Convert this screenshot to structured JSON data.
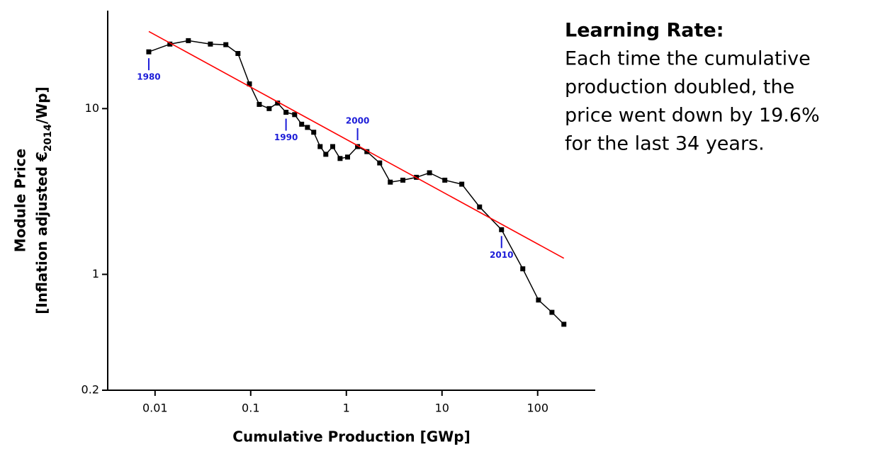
{
  "chart_data": {
    "type": "line",
    "xlabel": "Cumulative Production [GWp]",
    "ylabel": "Module Price",
    "ylabel_line2": [
      "[Inflation adjusted €",
      "2014",
      "/Wp]"
    ],
    "xscale": "log",
    "yscale": "log",
    "xlim": [
      0.0032,
      400
    ],
    "ylim": [
      0.2,
      39
    ],
    "xticks": [
      0.01,
      0.1,
      1,
      10,
      100
    ],
    "yticks": [
      0.2,
      1,
      10
    ],
    "series": [
      {
        "color": "#000000",
        "marker": "square",
        "x": [
          0.0086,
          0.0143,
          0.0223,
          0.0379,
          0.055,
          0.0736,
          0.097,
          0.123,
          0.156,
          0.191,
          0.234,
          0.288,
          0.341,
          0.392,
          0.456,
          0.532,
          0.61,
          0.72,
          0.86,
          1.03,
          1.31,
          1.64,
          2.23,
          2.88,
          3.9,
          5.4,
          7.4,
          10.7,
          16.1,
          24.7,
          41.9,
          69.9,
          102,
          141,
          188
        ],
        "values": [
          22.0,
          24.5,
          25.7,
          24.5,
          24.3,
          21.5,
          14.1,
          10.6,
          10.0,
          10.8,
          9.5,
          9.2,
          8.05,
          7.7,
          7.2,
          5.9,
          5.3,
          5.9,
          5.0,
          5.1,
          5.9,
          5.5,
          4.7,
          3.6,
          3.7,
          3.85,
          4.1,
          3.7,
          3.5,
          2.55,
          1.86,
          1.08,
          0.7,
          0.59,
          0.5
        ]
      },
      {
        "color": "#ff0000",
        "marker": "none",
        "x": [
          0.0086,
          188
        ],
        "values": [
          29.2,
          1.25
        ]
      }
    ],
    "annotations": [
      {
        "text": "1980",
        "x": 0.0086,
        "y": 22.0,
        "position": "below"
      },
      {
        "text": "1990",
        "x": 0.234,
        "y": 9.5,
        "position": "below"
      },
      {
        "text": "2000",
        "x": 1.31,
        "y": 5.9,
        "position": "above"
      },
      {
        "text": "2010",
        "x": 41.9,
        "y": 1.86,
        "position": "below"
      }
    ],
    "annotation_color": "#1c1cd8",
    "side_text": {
      "title": "Learning Rate:",
      "lines": [
        "Each time the cumulative",
        "production doubled, the",
        "price went down by 19.6%",
        "for the last 34 years."
      ]
    }
  }
}
